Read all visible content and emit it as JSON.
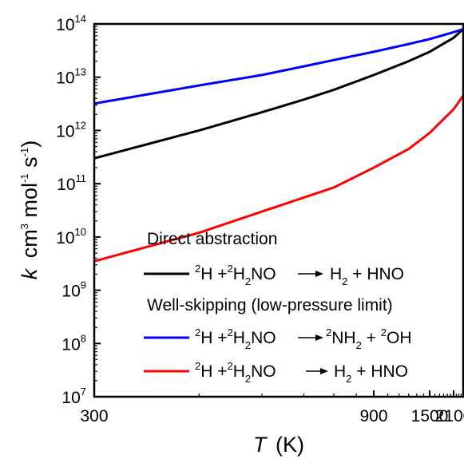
{
  "chart_data": {
    "type": "line",
    "title": "",
    "xlabel": {
      "symbol": "T",
      "unit": "(K)"
    },
    "ylabel": {
      "symbol": "k",
      "unit_parts": [
        "cm",
        "3",
        " mol",
        "-1",
        " s",
        "-1"
      ]
    },
    "x_scale": "reciprocal",
    "y_scale": "log",
    "xlim": [
      300,
      2500
    ],
    "ylim": [
      10000000,
      100000000000000
    ],
    "x_ticks": [
      300,
      900,
      1500,
      2100
    ],
    "y_tick_exponents": [
      7,
      8,
      9,
      10,
      11,
      12,
      13,
      14
    ],
    "grid": false,
    "legend_position": "bottom-right",
    "legend_groups": [
      {
        "heading": "Direct abstraction",
        "entries": [
          0
        ]
      },
      {
        "heading": "Well-skipping (low-pressure limit)",
        "entries": [
          1,
          2
        ]
      }
    ],
    "series": [
      {
        "reaction": "2H + 2H2NO → H2 + HNO",
        "color": "#000000",
        "x": [
          300,
          400,
          500,
          600,
          700,
          900,
          1200,
          1500,
          2100,
          2500
        ],
        "y": [
          300000000000,
          1000000000000,
          2200000000000,
          3800000000000,
          5800000000000,
          11000000000000,
          20000000000000,
          30000000000000,
          55000000000000,
          80000000000000
        ]
      },
      {
        "reaction": "2H + 2H2NO → 2NH2 + 2OH",
        "color": "#0000ff",
        "x": [
          300,
          400,
          500,
          600,
          700,
          900,
          1200,
          1500,
          2100,
          2500
        ],
        "y": [
          3200000000000,
          7000000000000,
          11000000000000,
          16000000000000,
          21000000000000,
          30000000000000,
          42000000000000,
          52000000000000,
          70000000000000,
          80000000000000
        ]
      },
      {
        "reaction": "2H + 2H2NO → H2 + HNO",
        "color": "#ff0000",
        "x": [
          300,
          400,
          500,
          600,
          700,
          900,
          1200,
          1500,
          2100,
          2500
        ],
        "y": [
          3500000000,
          12000000000,
          30000000000,
          55000000000,
          85000000000,
          200000000000,
          450000000000,
          900000000000,
          2500000000000,
          4500000000000
        ]
      }
    ]
  }
}
